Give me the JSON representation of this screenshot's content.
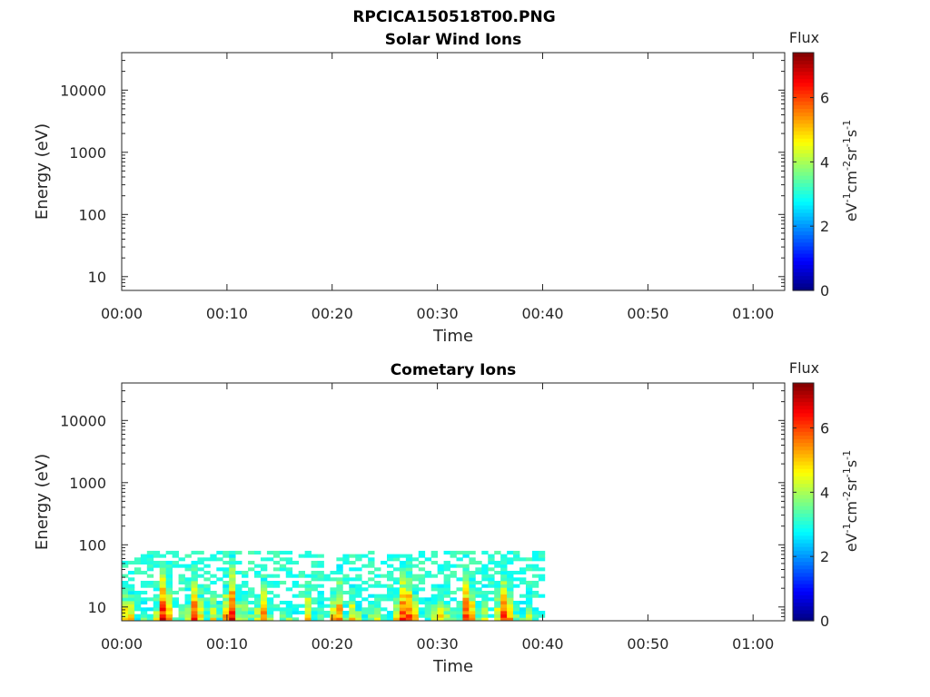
{
  "figure": {
    "title": "RPCICA150518T00.PNG"
  },
  "colorbar": {
    "label": "Flux",
    "unit_parts": [
      "eV",
      "-1",
      "cm",
      "-2",
      "sr",
      "-1",
      "s",
      "-1"
    ],
    "ticks": [
      0,
      2,
      4,
      6
    ],
    "range": [
      0,
      7.4
    ],
    "colormap": "jet"
  },
  "chart_data": [
    {
      "type": "heatmap",
      "title": "Solar Wind Ions",
      "xlabel": "Time",
      "ylabel": "Energy (eV)",
      "x_ticks": [
        "00:00",
        "00:10",
        "00:20",
        "00:30",
        "00:40",
        "00:50",
        "01:00"
      ],
      "y_ticks": [
        "10",
        "100",
        "1000",
        "10000"
      ],
      "xlim_minutes": [
        0,
        63
      ],
      "ylim": [
        6,
        40000
      ],
      "y_scale": "log",
      "data_present": false,
      "segments": []
    },
    {
      "type": "heatmap",
      "title": "Cometary Ions",
      "xlabel": "Time",
      "ylabel": "Energy (eV)",
      "x_ticks": [
        "00:00",
        "00:10",
        "00:20",
        "00:30",
        "00:40",
        "00:50",
        "01:00"
      ],
      "y_ticks": [
        "10",
        "100",
        "1000",
        "10000"
      ],
      "xlim_minutes": [
        0,
        63
      ],
      "ylim": [
        6,
        40000
      ],
      "y_scale": "log",
      "data_present": true,
      "energy_max_ev": 80,
      "data_end_minutes": 40,
      "segments": [
        {
          "t0": 0.0,
          "t1": 1.2,
          "peak": 6.2
        },
        {
          "t0": 1.2,
          "t1": 3.2,
          "peak": 3.8
        },
        {
          "t0": 3.2,
          "t1": 4.8,
          "peak": 7.0
        },
        {
          "t0": 4.8,
          "t1": 6.2,
          "peak": 4.2
        },
        {
          "t0": 6.2,
          "t1": 7.8,
          "peak": 6.6
        },
        {
          "t0": 7.8,
          "t1": 9.6,
          "peak": 4.6
        },
        {
          "t0": 9.6,
          "t1": 11.2,
          "peak": 7.3
        },
        {
          "t0": 11.2,
          "t1": 12.6,
          "peak": 4.8
        },
        {
          "t0": 12.6,
          "t1": 14.2,
          "peak": 6.0
        },
        {
          "t0": 14.2,
          "t1": 17.2,
          "peak": 3.9
        },
        {
          "t0": 17.2,
          "t1": 18.0,
          "peak": 5.8
        },
        {
          "t0": 18.0,
          "t1": 19.8,
          "peak": 4.0
        },
        {
          "t0": 19.8,
          "t1": 21.2,
          "peak": 6.5
        },
        {
          "t0": 21.2,
          "t1": 22.8,
          "peak": 5.2
        },
        {
          "t0": 22.8,
          "t1": 25.6,
          "peak": 4.3
        },
        {
          "t0": 25.6,
          "t1": 28.4,
          "peak": 6.8
        },
        {
          "t0": 28.4,
          "t1": 32.2,
          "peak": 4.7
        },
        {
          "t0": 32.2,
          "t1": 33.6,
          "peak": 7.2
        },
        {
          "t0": 33.6,
          "t1": 35.2,
          "peak": 4.5
        },
        {
          "t0": 35.2,
          "t1": 37.6,
          "peak": 6.4
        },
        {
          "t0": 37.6,
          "t1": 40.0,
          "peak": 4.4
        }
      ]
    }
  ]
}
